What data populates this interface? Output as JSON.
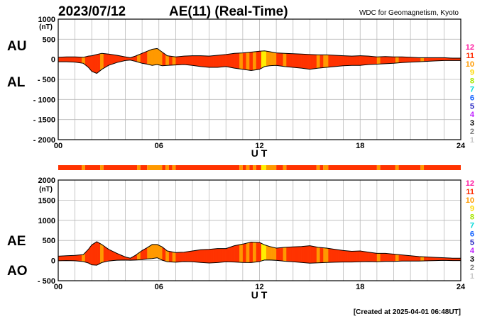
{
  "header": {
    "date": "2023/07/12",
    "title": "AE(11) (Real-Time)",
    "source": "WDC for Geomagnetism, Kyoto"
  },
  "footer": {
    "created": "[Created at 2025-04-01 06:48UT]"
  },
  "level_legend": {
    "levels": [
      "12",
      "11",
      "10",
      "9",
      "8",
      "7",
      "6",
      "5",
      "4",
      "3",
      "2",
      "1"
    ],
    "colors": [
      "#ff1aa0",
      "#ff2a00",
      "#ff9a00",
      "#ffd800",
      "#a6e600",
      "#00d8d8",
      "#1060ff",
      "#2020c0",
      "#c020ff",
      "#000000",
      "#808080",
      "#c8c8c8"
    ]
  },
  "colors": {
    "red": "#ff3300",
    "orange": "#ff9900",
    "yellow": "#ffee00",
    "grid": "#b8b8b8"
  },
  "chart_data": [
    {
      "type": "area",
      "title": "AU / AL",
      "series_labels": {
        "upper": "AU",
        "lower": "AL"
      },
      "ylabel_unit": "(nT)",
      "xlabel": "U T",
      "xlim": [
        0,
        24
      ],
      "ylim": [
        -2000,
        1000
      ],
      "yticks": [
        "1000",
        "500",
        "0",
        "- 500",
        "- 1000",
        "- 1500",
        "- 2000"
      ],
      "ytick_values": [
        1000,
        500,
        0,
        -500,
        -1000,
        -1500,
        -2000
      ],
      "xticks": [
        "00",
        "06",
        "12",
        "18",
        "24"
      ],
      "xtick_values": [
        0,
        6,
        12,
        18,
        24
      ],
      "grid": true,
      "x": [
        0,
        0.5,
        1,
        1.5,
        1.8,
        2,
        2.3,
        2.6,
        3,
        3.5,
        4,
        4.3,
        4.6,
        5,
        5.3,
        5.6,
        5.9,
        6.2,
        6.5,
        7,
        7.5,
        8,
        8.5,
        9,
        9.5,
        10,
        10.5,
        11,
        11.5,
        12,
        12.3,
        12.6,
        13,
        13.5,
        14,
        14.5,
        15,
        15.5,
        16,
        16.5,
        17,
        17.5,
        18,
        18.5,
        19,
        19.5,
        20,
        20.5,
        21,
        21.5,
        22,
        22.5,
        23,
        23.5,
        24
      ],
      "AU": [
        50,
        60,
        60,
        50,
        80,
        90,
        120,
        150,
        130,
        100,
        60,
        40,
        80,
        150,
        200,
        250,
        270,
        180,
        90,
        60,
        80,
        90,
        90,
        80,
        100,
        120,
        150,
        160,
        180,
        200,
        210,
        190,
        160,
        150,
        140,
        130,
        120,
        110,
        110,
        100,
        90,
        80,
        90,
        80,
        60,
        70,
        60,
        60,
        50,
        40,
        40,
        40,
        40,
        30,
        30
      ],
      "AL": [
        -60,
        -60,
        -70,
        -100,
        -200,
        -300,
        -350,
        -250,
        -150,
        -80,
        -30,
        -20,
        -50,
        -100,
        -120,
        -150,
        -130,
        -160,
        -150,
        -140,
        -130,
        -150,
        -180,
        -200,
        -200,
        -180,
        -220,
        -250,
        -280,
        -250,
        -180,
        -160,
        -150,
        -180,
        -200,
        -220,
        -250,
        -220,
        -200,
        -180,
        -160,
        -150,
        -150,
        -130,
        -120,
        -110,
        -100,
        -80,
        -70,
        -60,
        -50,
        -40,
        -30,
        -30,
        -30
      ]
    },
    {
      "type": "area",
      "title": "AE / AO",
      "series_labels": {
        "upper": "AE",
        "lower": "AO"
      },
      "ylabel_unit": "(nT)",
      "xlabel": "U T",
      "xlim": [
        0,
        24
      ],
      "ylim": [
        -500,
        2000
      ],
      "yticks": [
        "2000",
        "1500",
        "1000",
        "500",
        "0",
        "- 500"
      ],
      "ytick_values": [
        2000,
        1500,
        1000,
        500,
        0,
        -500
      ],
      "xticks": [
        "00",
        "06",
        "12",
        "18",
        "24"
      ],
      "xtick_values": [
        0,
        6,
        12,
        18,
        24
      ],
      "grid": true,
      "x": [
        0,
        0.5,
        1,
        1.5,
        1.8,
        2,
        2.3,
        2.6,
        3,
        3.5,
        4,
        4.3,
        4.6,
        5,
        5.3,
        5.6,
        5.9,
        6.2,
        6.5,
        7,
        7.5,
        8,
        8.5,
        9,
        9.5,
        10,
        10.5,
        11,
        11.5,
        12,
        12.3,
        12.6,
        13,
        13.5,
        14,
        14.5,
        15,
        15.5,
        16,
        16.5,
        17,
        17.5,
        18,
        18.5,
        19,
        19.5,
        20,
        20.5,
        21,
        21.5,
        22,
        22.5,
        23,
        23.5,
        24
      ],
      "AE": [
        110,
        120,
        130,
        150,
        280,
        390,
        470,
        400,
        280,
        180,
        90,
        60,
        130,
        250,
        320,
        400,
        400,
        340,
        240,
        200,
        210,
        240,
        270,
        280,
        300,
        300,
        370,
        410,
        460,
        450,
        390,
        350,
        310,
        330,
        340,
        350,
        370,
        330,
        310,
        280,
        250,
        230,
        240,
        210,
        180,
        180,
        160,
        140,
        120,
        100,
        90,
        80,
        70,
        60,
        60
      ],
      "AO": [
        -5,
        0,
        -5,
        -25,
        -60,
        -105,
        -115,
        -50,
        -10,
        10,
        15,
        10,
        15,
        25,
        40,
        50,
        70,
        10,
        -30,
        -40,
        -25,
        -30,
        -45,
        -60,
        -50,
        -30,
        -35,
        -45,
        -50,
        -25,
        15,
        15,
        5,
        -15,
        -30,
        -45,
        -65,
        -55,
        -45,
        -40,
        -35,
        -35,
        -30,
        -25,
        -30,
        -20,
        -20,
        -10,
        -10,
        -10,
        -5,
        0,
        5,
        0,
        0
      ]
    }
  ],
  "activity_bar": {
    "segments": [
      {
        "start": 0,
        "end": 1.4,
        "color": "red"
      },
      {
        "start": 1.4,
        "end": 1.6,
        "color": "orange"
      },
      {
        "start": 1.6,
        "end": 2.5,
        "color": "red"
      },
      {
        "start": 2.5,
        "end": 2.7,
        "color": "orange"
      },
      {
        "start": 2.7,
        "end": 4.7,
        "color": "red"
      },
      {
        "start": 4.7,
        "end": 4.9,
        "color": "orange"
      },
      {
        "start": 4.9,
        "end": 5.3,
        "color": "red"
      },
      {
        "start": 5.3,
        "end": 6.2,
        "color": "orange"
      },
      {
        "start": 6.2,
        "end": 6.4,
        "color": "red"
      },
      {
        "start": 6.4,
        "end": 6.6,
        "color": "orange"
      },
      {
        "start": 6.6,
        "end": 6.8,
        "color": "red"
      },
      {
        "start": 6.8,
        "end": 7.0,
        "color": "orange"
      },
      {
        "start": 7.0,
        "end": 10.8,
        "color": "red"
      },
      {
        "start": 10.8,
        "end": 11.0,
        "color": "orange"
      },
      {
        "start": 11.0,
        "end": 11.2,
        "color": "red"
      },
      {
        "start": 11.2,
        "end": 11.4,
        "color": "orange"
      },
      {
        "start": 11.4,
        "end": 11.6,
        "color": "red"
      },
      {
        "start": 11.6,
        "end": 11.8,
        "color": "orange"
      },
      {
        "start": 11.8,
        "end": 12.1,
        "color": "red"
      },
      {
        "start": 12.1,
        "end": 12.4,
        "color": "yellow"
      },
      {
        "start": 12.4,
        "end": 13.0,
        "color": "orange"
      },
      {
        "start": 13.0,
        "end": 13.4,
        "color": "red"
      },
      {
        "start": 13.4,
        "end": 13.6,
        "color": "orange"
      },
      {
        "start": 13.6,
        "end": 15.4,
        "color": "red"
      },
      {
        "start": 15.4,
        "end": 15.6,
        "color": "orange"
      },
      {
        "start": 15.6,
        "end": 15.8,
        "color": "red"
      },
      {
        "start": 15.8,
        "end": 16.1,
        "color": "orange"
      },
      {
        "start": 16.1,
        "end": 19.0,
        "color": "red"
      },
      {
        "start": 19.0,
        "end": 19.2,
        "color": "orange"
      },
      {
        "start": 19.2,
        "end": 20.1,
        "color": "red"
      },
      {
        "start": 20.1,
        "end": 20.3,
        "color": "orange"
      },
      {
        "start": 20.3,
        "end": 21.6,
        "color": "red"
      },
      {
        "start": 21.6,
        "end": 21.8,
        "color": "orange"
      },
      {
        "start": 21.8,
        "end": 24.0,
        "color": "red"
      }
    ]
  }
}
